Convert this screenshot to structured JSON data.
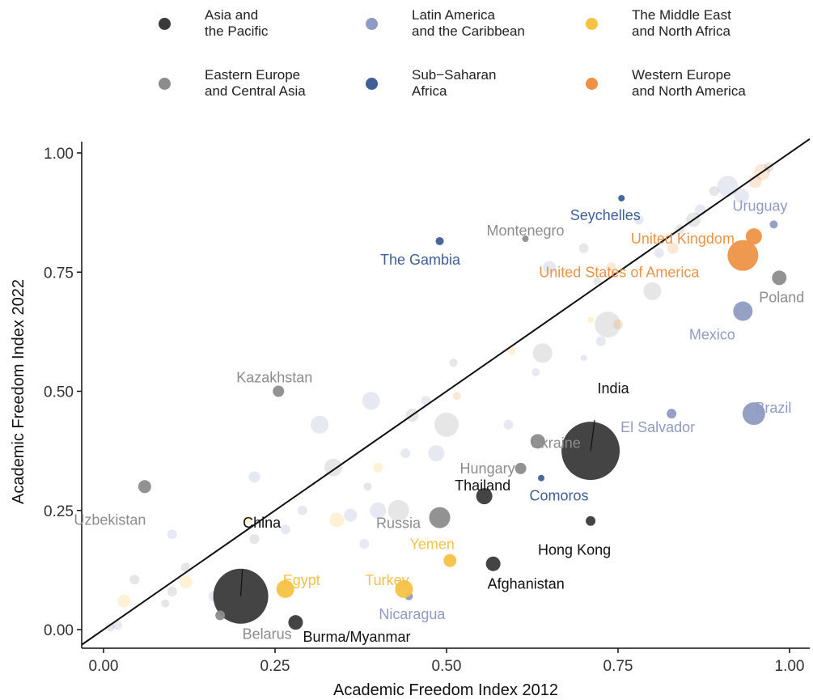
{
  "chart_data": {
    "type": "scatter",
    "xlabel": "Academic Freedom Index 2012",
    "ylabel": "Academic Freedom Index 2022",
    "xlim": [
      -0.03,
      1.03
    ],
    "ylim": [
      -0.04,
      1.03
    ],
    "x_ticks": [
      "0.00",
      "0.25",
      "0.50",
      "0.75",
      "1.00"
    ],
    "y_ticks": [
      "0.00",
      "0.25",
      "0.50",
      "0.75",
      "1.00"
    ],
    "x_tick_values": [
      0,
      0.25,
      0.5,
      0.75,
      1.0
    ],
    "y_tick_values": [
      0,
      0.25,
      0.5,
      0.75,
      1.0
    ],
    "reference_line": "y = x",
    "grid": false,
    "legend_position": "top",
    "regions": [
      {
        "key": "asia",
        "name": "Asia and\nthe Pacific",
        "color": "#3a3a3a"
      },
      {
        "key": "eeca",
        "name": "Eastern Europe\nand Central Asia",
        "color": "#8c8c8c"
      },
      {
        "key": "lac",
        "name": "Latin America\nand the Caribbean",
        "color": "#8f9bc2"
      },
      {
        "key": "ssa",
        "name": "Sub−Saharan\nAfrica",
        "color": "#3f5f96"
      },
      {
        "key": "mena",
        "name": "The Middle East\nand North Africa",
        "color": "#f6c244"
      },
      {
        "key": "wena",
        "name": "Western Europe\nand North America",
        "color": "#ee9246"
      }
    ],
    "labeled_points": [
      {
        "label": "China",
        "region": "asia",
        "x": 0.2,
        "y": 0.07,
        "size": 34
      },
      {
        "label": "India",
        "region": "asia",
        "x": 0.71,
        "y": 0.375,
        "size": 36
      },
      {
        "label": "Thailand",
        "region": "asia",
        "x": 0.555,
        "y": 0.28,
        "size": 10
      },
      {
        "label": "Hong Kong",
        "region": "asia",
        "x": 0.71,
        "y": 0.228,
        "size": 6
      },
      {
        "label": "Afghanistan",
        "region": "asia",
        "x": 0.568,
        "y": 0.138,
        "size": 9
      },
      {
        "label": "Burma/Myanmar",
        "region": "asia",
        "x": 0.28,
        "y": 0.015,
        "size": 9
      },
      {
        "label": "Kazakhstan",
        "region": "eeca",
        "x": 0.255,
        "y": 0.5,
        "size": 7
      },
      {
        "label": "Uzbekistan",
        "region": "eeca",
        "x": 0.06,
        "y": 0.3,
        "size": 8
      },
      {
        "label": "Montenegro",
        "region": "eeca",
        "x": 0.615,
        "y": 0.82,
        "size": 4
      },
      {
        "label": "Poland",
        "region": "eeca",
        "x": 0.985,
        "y": 0.738,
        "size": 9
      },
      {
        "label": "Ukraine",
        "region": "eeca",
        "x": 0.633,
        "y": 0.395,
        "size": 9
      },
      {
        "label": "Hungary",
        "region": "eeca",
        "x": 0.608,
        "y": 0.338,
        "size": 7
      },
      {
        "label": "Russia",
        "region": "eeca",
        "x": 0.49,
        "y": 0.235,
        "size": 13
      },
      {
        "label": "Belarus",
        "region": "eeca",
        "x": 0.17,
        "y": 0.03,
        "size": 6
      },
      {
        "label": "Uruguay",
        "region": "lac",
        "x": 0.977,
        "y": 0.85,
        "size": 5
      },
      {
        "label": "Mexico",
        "region": "lac",
        "x": 0.932,
        "y": 0.668,
        "size": 12
      },
      {
        "label": "Brazil",
        "region": "lac",
        "x": 0.948,
        "y": 0.453,
        "size": 14
      },
      {
        "label": "El Salvador",
        "region": "lac",
        "x": 0.828,
        "y": 0.453,
        "size": 6
      },
      {
        "label": "Nicaragua",
        "region": "lac",
        "x": 0.445,
        "y": 0.07,
        "size": 5
      },
      {
        "label": "Seychelles",
        "region": "ssa",
        "x": 0.755,
        "y": 0.905,
        "size": 4
      },
      {
        "label": "The Gambia",
        "region": "ssa",
        "x": 0.49,
        "y": 0.815,
        "size": 5
      },
      {
        "label": "Comoros",
        "region": "ssa",
        "x": 0.638,
        "y": 0.318,
        "size": 4
      },
      {
        "label": "Egypt",
        "region": "mena",
        "x": 0.265,
        "y": 0.085,
        "size": 11
      },
      {
        "label": "Turkey",
        "region": "mena",
        "x": 0.438,
        "y": 0.085,
        "size": 11
      },
      {
        "label": "Yemen",
        "region": "mena",
        "x": 0.505,
        "y": 0.145,
        "size": 8
      },
      {
        "label": "United Kingdom",
        "region": "wena",
        "x": 0.948,
        "y": 0.825,
        "size": 10
      },
      {
        "label": "United States of America",
        "region": "wena",
        "x": 0.932,
        "y": 0.785,
        "size": 19
      }
    ],
    "faded_points": [
      {
        "region": "lac",
        "x": 0.91,
        "y": 0.93,
        "size": 13
      },
      {
        "region": "wena",
        "x": 0.96,
        "y": 0.96,
        "size": 10
      },
      {
        "region": "eeca",
        "x": 0.97,
        "y": 0.97,
        "size": 6
      },
      {
        "region": "lac",
        "x": 0.93,
        "y": 0.91,
        "size": 9
      },
      {
        "region": "wena",
        "x": 0.95,
        "y": 0.94,
        "size": 8
      },
      {
        "region": "eeca",
        "x": 0.89,
        "y": 0.92,
        "size": 6
      },
      {
        "region": "lac",
        "x": 0.87,
        "y": 0.88,
        "size": 7
      },
      {
        "region": "eeca",
        "x": 0.86,
        "y": 0.86,
        "size": 9
      },
      {
        "region": "wena",
        "x": 0.83,
        "y": 0.8,
        "size": 7
      },
      {
        "region": "eeca",
        "x": 0.84,
        "y": 0.84,
        "size": 6
      },
      {
        "region": "lac",
        "x": 0.81,
        "y": 0.79,
        "size": 6
      },
      {
        "region": "eeca",
        "x": 0.8,
        "y": 0.71,
        "size": 11
      },
      {
        "region": "lac",
        "x": 0.78,
        "y": 0.86,
        "size": 6
      },
      {
        "region": "eeca",
        "x": 0.7,
        "y": 0.8,
        "size": 6
      },
      {
        "region": "lac",
        "x": 0.65,
        "y": 0.76,
        "size": 8
      },
      {
        "region": "eeca",
        "x": 0.72,
        "y": 0.73,
        "size": 5
      },
      {
        "region": "wena",
        "x": 0.74,
        "y": 0.76,
        "size": 6
      },
      {
        "region": "eeca",
        "x": 0.735,
        "y": 0.64,
        "size": 16
      },
      {
        "region": "wena",
        "x": 0.75,
        "y": 0.64,
        "size": 6
      },
      {
        "region": "lac",
        "x": 0.725,
        "y": 0.605,
        "size": 6
      },
      {
        "region": "eeca",
        "x": 0.64,
        "y": 0.58,
        "size": 12
      },
      {
        "region": "mena",
        "x": 0.71,
        "y": 0.65,
        "size": 4
      },
      {
        "region": "lac",
        "x": 0.7,
        "y": 0.57,
        "size": 4
      },
      {
        "region": "eeca",
        "x": 0.51,
        "y": 0.56,
        "size": 5
      },
      {
        "region": "mena",
        "x": 0.595,
        "y": 0.585,
        "size": 5
      },
      {
        "region": "lac",
        "x": 0.63,
        "y": 0.54,
        "size": 5
      },
      {
        "region": "eeca",
        "x": 0.5,
        "y": 0.43,
        "size": 15
      },
      {
        "region": "lac",
        "x": 0.47,
        "y": 0.48,
        "size": 6
      },
      {
        "region": "eeca",
        "x": 0.45,
        "y": 0.45,
        "size": 8
      },
      {
        "region": "lac",
        "x": 0.39,
        "y": 0.48,
        "size": 11
      },
      {
        "region": "wena",
        "x": 0.515,
        "y": 0.49,
        "size": 5
      },
      {
        "region": "lac",
        "x": 0.59,
        "y": 0.43,
        "size": 6
      },
      {
        "region": "lac",
        "x": 0.315,
        "y": 0.43,
        "size": 11
      },
      {
        "region": "lac",
        "x": 0.485,
        "y": 0.37,
        "size": 10
      },
      {
        "region": "lac",
        "x": 0.44,
        "y": 0.37,
        "size": 6
      },
      {
        "region": "eeca",
        "x": 0.335,
        "y": 0.34,
        "size": 11
      },
      {
        "region": "lac",
        "x": 0.22,
        "y": 0.32,
        "size": 7
      },
      {
        "region": "eeca",
        "x": 0.385,
        "y": 0.3,
        "size": 5
      },
      {
        "region": "mena",
        "x": 0.4,
        "y": 0.34,
        "size": 6
      },
      {
        "region": "lac",
        "x": 0.4,
        "y": 0.25,
        "size": 10
      },
      {
        "region": "eeca",
        "x": 0.43,
        "y": 0.25,
        "size": 13
      },
      {
        "region": "lac",
        "x": 0.36,
        "y": 0.24,
        "size": 8
      },
      {
        "region": "mena",
        "x": 0.34,
        "y": 0.23,
        "size": 9
      },
      {
        "region": "lac",
        "x": 0.38,
        "y": 0.18,
        "size": 6
      },
      {
        "region": "lac",
        "x": 0.29,
        "y": 0.25,
        "size": 6
      },
      {
        "region": "eeca",
        "x": 0.22,
        "y": 0.19,
        "size": 6
      },
      {
        "region": "lac",
        "x": 0.1,
        "y": 0.2,
        "size": 6
      },
      {
        "region": "eeca",
        "x": 0.1,
        "y": 0.08,
        "size": 6
      },
      {
        "region": "eeca",
        "x": 0.09,
        "y": 0.055,
        "size": 5
      },
      {
        "region": "mena",
        "x": 0.12,
        "y": 0.1,
        "size": 8
      },
      {
        "region": "lac",
        "x": 0.16,
        "y": 0.07,
        "size": 6
      },
      {
        "region": "eeca",
        "x": 0.12,
        "y": 0.13,
        "size": 6
      },
      {
        "region": "eeca",
        "x": 0.045,
        "y": 0.105,
        "size": 6
      },
      {
        "region": "mena",
        "x": 0.03,
        "y": 0.06,
        "size": 8
      },
      {
        "region": "lac",
        "x": 0.02,
        "y": 0.01,
        "size": 6
      },
      {
        "region": "eeca",
        "x": 0.01,
        "y": 0.005,
        "size": 5
      },
      {
        "region": "mena",
        "x": 0.21,
        "y": 0.23,
        "size": 5
      },
      {
        "region": "lac",
        "x": 0.265,
        "y": 0.21,
        "size": 6
      }
    ]
  }
}
